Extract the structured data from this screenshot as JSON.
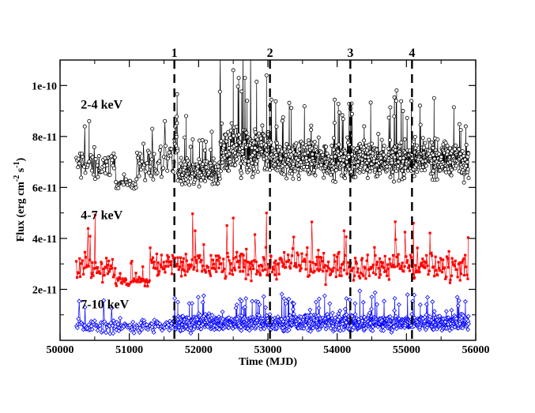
{
  "chart_data": {
    "type": "scatter",
    "title": "",
    "xlabel": "Time (MJD)",
    "ylabel": "Flux (erg cm^-2 s^-1)",
    "ylabel_parts": {
      "main": "Flux (erg cm",
      "sup1": "-2",
      "mid": " s",
      "sup2": "-1",
      "end": ")"
    },
    "xlim": [
      50000,
      56000
    ],
    "ylim": [
      0,
      1.1e-10
    ],
    "xticks": [
      50000,
      51000,
      52000,
      53000,
      54000,
      55000,
      56000
    ],
    "xtick_labels": [
      "50000",
      "51000",
      "52000",
      "53000",
      "54000",
      "55000",
      "56000"
    ],
    "yticks": [
      2e-11,
      4e-11,
      6e-11,
      8e-11,
      1e-10
    ],
    "ytick_labels": [
      "2e-11",
      "4e-11",
      "6e-11",
      "8e-11",
      "1e-10"
    ],
    "grid": false,
    "legend": "none",
    "x_range": [
      50230,
      55900
    ],
    "series": [
      {
        "name": "2-4 keV",
        "color": "#000000",
        "marker": "open-circle",
        "baseline": 6.95e-11,
        "segments": [
          {
            "x": [
              50230,
              50800
            ],
            "mean": 6.9e-11,
            "spread": 7e-12
          },
          {
            "x": [
              50800,
              51100
            ],
            "mean": 6.15e-11,
            "spread": 2e-12
          },
          {
            "x": [
              51100,
              51650
            ],
            "mean": 6.9e-11,
            "spread": 7e-12
          },
          {
            "x": [
              51650,
              51700
            ],
            "mean": 7.8e-11,
            "spread": 1e-11
          },
          {
            "x": [
              51700,
              52300
            ],
            "mean": 6.6e-11,
            "spread": 5e-12
          },
          {
            "x": [
              52300,
              53050
            ],
            "mean": 7.4e-11,
            "spread": 1.1e-11
          },
          {
            "x": [
              53050,
              55900
            ],
            "mean": 7.1e-11,
            "spread": 8e-12
          }
        ],
        "peaks": [
          [
            52500,
            1.06e-10
          ],
          [
            52980,
            1.04e-10
          ],
          [
            52700,
            9.4e-11
          ],
          [
            51820,
            8.8e-11
          ],
          [
            50420,
            8.6e-11
          ],
          [
            54190,
            9.1e-11
          ],
          [
            54950,
            9e-11
          ],
          [
            53030,
            9.2e-11
          ]
        ]
      },
      {
        "name": "4-7 keV",
        "color": "#ff0000",
        "marker": "filled-square",
        "baseline": 2.95e-11,
        "segments": [
          {
            "x": [
              50230,
              50800
            ],
            "mean": 2.9e-11,
            "spread": 6e-12
          },
          {
            "x": [
              50800,
              51300
            ],
            "mean": 2.3e-11,
            "spread": 3e-12
          },
          {
            "x": [
              51300,
              55900
            ],
            "mean": 2.95e-11,
            "spread": 6.5e-12
          }
        ],
        "peaks": [
          [
            52500,
            4.8e-11
          ],
          [
            52980,
            5e-11
          ],
          [
            55100,
            4.6e-11
          ],
          [
            51950,
            4.3e-11
          ],
          [
            54100,
            4.3e-11
          ]
        ]
      },
      {
        "name": "7-10 keV",
        "color": "#0000ff",
        "marker": "open-diamond",
        "baseline": 6e-12,
        "segments": [
          {
            "x": [
              50230,
              51650
            ],
            "mean": 5.5e-12,
            "spread": 3e-12
          },
          {
            "x": [
              51650,
              55900
            ],
            "mean": 7e-12,
            "spread": 3.5e-12
          }
        ],
        "peaks": [
          [
            52600,
            1.6e-11
          ],
          [
            51700,
            1.5e-11
          ],
          [
            55200,
            1.4e-11
          ],
          [
            50360,
            1.3e-11
          ]
        ]
      }
    ],
    "band_labels": [
      {
        "text": "2-4 keV",
        "y": 9.1e-11,
        "x": 50300
      },
      {
        "text": "4-7 keV",
        "y": 4.75e-11,
        "x": 50300
      },
      {
        "text": "7-10 keV",
        "y": 1.25e-11,
        "x": 50300
      }
    ],
    "epochs": [
      {
        "label": "1",
        "x": 51650
      },
      {
        "label": "2",
        "x": 53030
      },
      {
        "label": "3",
        "x": 54190
      },
      {
        "label": "4",
        "x": 55080
      }
    ]
  }
}
